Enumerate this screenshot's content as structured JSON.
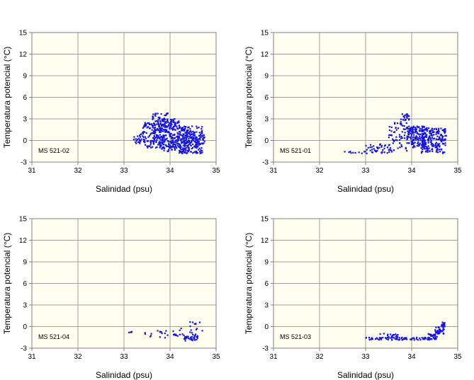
{
  "colors": {
    "plot_bg": "#FFFFF0",
    "grid": "#A0A0A0",
    "point": "#1414E6",
    "axis": "#808080"
  },
  "chart_data": [
    {
      "type": "scatter",
      "label": "MS 521-02",
      "xlabel": "Salinidad (psu)",
      "ylabel": "Temperatura potencial (°C)",
      "xlim": [
        31,
        35
      ],
      "ylim": [
        -3,
        15
      ],
      "xticks": [
        "31",
        "32",
        "33",
        "34",
        "35"
      ],
      "yticks": [
        "-3",
        "0",
        "3",
        "6",
        "9",
        "12",
        "15"
      ],
      "clusters": [
        {
          "sx": [
            33.2,
            33.4
          ],
          "ty": [
            -0.5,
            1.0
          ],
          "n": 20
        },
        {
          "sx": [
            33.4,
            33.8
          ],
          "ty": [
            -1.0,
            2.5
          ],
          "n": 120
        },
        {
          "sx": [
            33.6,
            33.95
          ],
          "ty": [
            1.0,
            3.8
          ],
          "n": 70
        },
        {
          "sx": [
            33.8,
            34.2
          ],
          "ty": [
            -1.5,
            3.0
          ],
          "n": 220
        },
        {
          "sx": [
            34.2,
            34.7
          ],
          "ty": [
            -1.8,
            2.0
          ],
          "n": 260
        },
        {
          "sx": [
            34.7,
            34.75
          ],
          "ty": [
            -0.5,
            1.0
          ],
          "n": 10
        }
      ]
    },
    {
      "type": "scatter",
      "label": "MS 521-01",
      "xlabel": "Salinidad (psu)",
      "ylabel": "Temperatura potencial (°C)",
      "xlim": [
        31,
        35
      ],
      "ylim": [
        -3,
        15
      ],
      "xticks": [
        "31",
        "32",
        "33",
        "34",
        "35"
      ],
      "yticks": [
        "-3",
        "0",
        "3",
        "6",
        "9",
        "12",
        "15"
      ],
      "clusters": [
        {
          "sx": [
            32.5,
            33.0
          ],
          "ty": [
            -1.8,
            -1.5
          ],
          "n": 10
        },
        {
          "sx": [
            33.0,
            33.6
          ],
          "ty": [
            -1.8,
            -0.5
          ],
          "n": 45
        },
        {
          "sx": [
            33.5,
            33.9
          ],
          "ty": [
            -1.5,
            2.5
          ],
          "n": 60
        },
        {
          "sx": [
            33.75,
            33.95
          ],
          "ty": [
            2.0,
            3.8
          ],
          "n": 25
        },
        {
          "sx": [
            33.9,
            34.3
          ],
          "ty": [
            -1.0,
            2.0
          ],
          "n": 140
        },
        {
          "sx": [
            34.2,
            34.75
          ],
          "ty": [
            -1.8,
            1.8
          ],
          "n": 200
        }
      ]
    },
    {
      "type": "scatter",
      "label": "MS 521-04",
      "xlabel": "Salinidad (psu)",
      "ylabel": "Temperatura potencial (°C)",
      "xlim": [
        31,
        35
      ],
      "ylim": [
        -3,
        15
      ],
      "xticks": [
        "31",
        "32",
        "33",
        "34",
        "35"
      ],
      "yticks": [
        "-3",
        "0",
        "3",
        "6",
        "9",
        "12",
        "15"
      ],
      "clusters": [
        {
          "sx": [
            33.1,
            33.2
          ],
          "ty": [
            -0.9,
            -0.6
          ],
          "n": 4
        },
        {
          "sx": [
            33.4,
            33.6
          ],
          "ty": [
            -1.6,
            -0.8
          ],
          "n": 5
        },
        {
          "sx": [
            33.7,
            34.0
          ],
          "ty": [
            -1.6,
            -0.4
          ],
          "n": 10
        },
        {
          "sx": [
            34.0,
            34.3
          ],
          "ty": [
            -1.5,
            -0.2
          ],
          "n": 12
        },
        {
          "sx": [
            34.3,
            34.6
          ],
          "ty": [
            -2.0,
            -1.2
          ],
          "n": 35
        },
        {
          "sx": [
            34.4,
            34.7
          ],
          "ty": [
            -1.2,
            1.0
          ],
          "n": 15
        }
      ]
    },
    {
      "type": "scatter",
      "label": "MS 521-03",
      "xlabel": "Salinidad (psu)",
      "ylabel": "Temperatura potencial (°C)",
      "xlim": [
        31,
        35
      ],
      "ylim": [
        -3,
        15
      ],
      "xticks": [
        "31",
        "32",
        "33",
        "34",
        "35"
      ],
      "yticks": [
        "-3",
        "0",
        "3",
        "6",
        "9",
        "12",
        "15"
      ],
      "clusters": [
        {
          "sx": [
            33.0,
            34.4
          ],
          "ty": [
            -1.85,
            -1.5
          ],
          "n": 80
        },
        {
          "sx": [
            33.3,
            33.7
          ],
          "ty": [
            -1.5,
            -0.9
          ],
          "n": 15
        },
        {
          "sx": [
            34.35,
            34.55
          ],
          "ty": [
            -1.8,
            -1.0
          ],
          "n": 30
        },
        {
          "sx": [
            34.5,
            34.7
          ],
          "ty": [
            -1.0,
            0.0
          ],
          "n": 35
        },
        {
          "sx": [
            34.65,
            34.72
          ],
          "ty": [
            0.0,
            0.6
          ],
          "n": 20
        }
      ]
    }
  ]
}
